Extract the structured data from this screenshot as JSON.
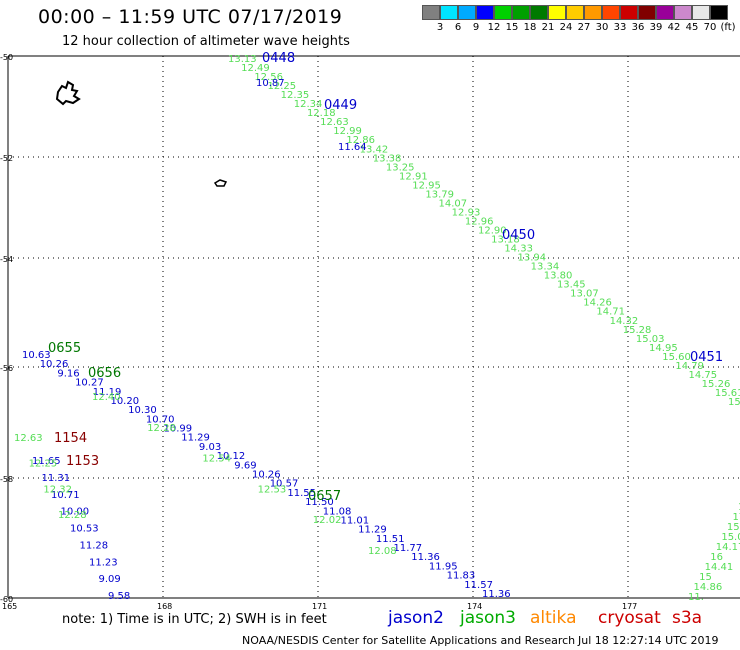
{
  "header": {
    "title": "00:00 – 11:59 UTC 07/17/2019",
    "subtitle": "12 hour collection of altimeter wave heights"
  },
  "color_scale": {
    "swatches": [
      "#808080",
      "#00e5ff",
      "#00aaff",
      "#0000ff",
      "#00d100",
      "#00a000",
      "#007a00",
      "#ffff00",
      "#ffcc00",
      "#ff9900",
      "#ff4500",
      "#cc0000",
      "#800000",
      "#990099",
      "#cc88cc",
      "#e8e8e8",
      "#000000"
    ],
    "labels": [
      "3",
      "6",
      "9",
      "12",
      "15",
      "18",
      "21",
      "24",
      "27",
      "30",
      "33",
      "36",
      "39",
      "42",
      "45",
      "70",
      "(ft)"
    ]
  },
  "axes": {
    "lat_labels": [
      "-50",
      "-52",
      "-54",
      "-56",
      "-58",
      "-60"
    ],
    "lon_labels": [
      "165",
      "168",
      "171",
      "174",
      "177"
    ]
  },
  "colors": {
    "jason2": "#0000cc",
    "jason3": "#00aa00",
    "jason3_pass": "#007700",
    "jason3_light": "#55dd55",
    "altika": "#ff8800",
    "cryosat": "#cc0000",
    "s3a": "#880000"
  },
  "passes": [
    {
      "label": "0448",
      "sat": "jason2"
    },
    {
      "label": "0449",
      "sat": "jason2"
    },
    {
      "label": "0450",
      "sat": "jason2"
    },
    {
      "label": "0451",
      "sat": "jason2"
    },
    {
      "label": "0655",
      "sat": "jason3"
    },
    {
      "label": "0656",
      "sat": "jason3"
    },
    {
      "label": "0657",
      "sat": "jason3"
    },
    {
      "label": "1154",
      "sat": "s3a"
    },
    {
      "label": "1153",
      "sat": "s3a"
    }
  ],
  "track_ne_green": [
    "13.13",
    "12.49",
    "12.56",
    "12.25",
    "12.35",
    "12.34",
    "12.18",
    "12.63",
    "12.99",
    "12.86",
    "13.42",
    "13.38",
    "13.25",
    "12.91",
    "12.95",
    "13.79",
    "14.07",
    "12.93",
    "12.96",
    "12.90",
    "13.18",
    "14.33",
    "13.94",
    "13.34",
    "13.80",
    "13.45",
    "13.07",
    "14.26",
    "14.71",
    "14.32",
    "15.28",
    "15.03",
    "14.95",
    "15.60",
    "14.79",
    "14.75",
    "15.26",
    "15.61",
    "15.46"
  ],
  "track_ne_blue": [
    "10.87",
    "11.64"
  ],
  "track_sw_blue": [
    "10.63",
    "10.26",
    "9.16",
    "10.27",
    "11.19",
    "10.20",
    "10.30",
    "10.70",
    "10.99",
    "11.29",
    "9.03",
    "10.12",
    "9.69",
    "10.26",
    "10.57",
    "11.55",
    "11.50",
    "11.08",
    "11.01",
    "11.29",
    "11.51",
    "11.77",
    "11.36",
    "11.95",
    "11.83",
    "11.57",
    "11.36"
  ],
  "track_sw_green": [
    "12.40",
    "12.28",
    "12.54",
    "12.53",
    "12.02",
    "12.08"
  ],
  "track_w_blue": [
    "11.65",
    "11.31",
    "10.71",
    "10.00",
    "10.53",
    "11.28",
    "11.23",
    "9.09",
    "9.58"
  ],
  "track_w_green": [
    "12.63",
    "12.25",
    "12.32",
    "12.28"
  ],
  "track_se_green": [
    "14.",
    "17.",
    "15.4",
    "15.03",
    "14.17",
    "16",
    "14.41",
    "15",
    "14.86",
    "11."
  ],
  "footer": {
    "note": "note:  1) Time is in UTC;  2) SWH is in feet",
    "legend": [
      "jason2",
      "jason3",
      "altika",
      "cryosat",
      "s3a"
    ],
    "credit": "NOAA/NESDIS Center for Satellite Applications and Research",
    "date": "Jul 18 12:27:14 UTC 2019"
  }
}
